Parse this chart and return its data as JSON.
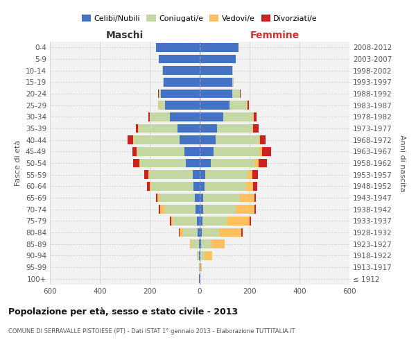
{
  "age_groups": [
    "100+",
    "95-99",
    "90-94",
    "85-89",
    "80-84",
    "75-79",
    "70-74",
    "65-69",
    "60-64",
    "55-59",
    "50-54",
    "45-49",
    "40-44",
    "35-39",
    "30-34",
    "25-29",
    "20-24",
    "15-19",
    "10-14",
    "5-9",
    "0-4"
  ],
  "birth_years": [
    "≤ 1912",
    "1913-1917",
    "1918-1922",
    "1923-1927",
    "1928-1932",
    "1933-1937",
    "1938-1942",
    "1943-1947",
    "1948-1952",
    "1953-1957",
    "1958-1962",
    "1963-1967",
    "1968-1972",
    "1973-1977",
    "1978-1982",
    "1983-1987",
    "1988-1992",
    "1993-1997",
    "1998-2002",
    "2003-2007",
    "2008-2012"
  ],
  "maschi": {
    "celibi": [
      2,
      1,
      2,
      4,
      8,
      12,
      18,
      20,
      25,
      28,
      55,
      60,
      80,
      90,
      120,
      140,
      155,
      145,
      148,
      165,
      175
    ],
    "coniugati": [
      0,
      2,
      8,
      30,
      60,
      95,
      125,
      140,
      170,
      175,
      185,
      190,
      185,
      155,
      80,
      25,
      10,
      3,
      2,
      0,
      0
    ],
    "vedovi": [
      0,
      0,
      2,
      5,
      12,
      8,
      15,
      10,
      5,
      3,
      2,
      2,
      2,
      2,
      1,
      1,
      0,
      0,
      0,
      0,
      0
    ],
    "divorziati": [
      0,
      0,
      0,
      0,
      2,
      5,
      5,
      5,
      10,
      15,
      25,
      18,
      22,
      8,
      5,
      2,
      2,
      0,
      0,
      0,
      0
    ]
  },
  "femmine": {
    "nubili": [
      2,
      2,
      4,
      6,
      8,
      10,
      15,
      15,
      20,
      22,
      45,
      55,
      65,
      70,
      95,
      120,
      130,
      130,
      130,
      145,
      155
    ],
    "coniugate": [
      0,
      2,
      15,
      40,
      70,
      100,
      130,
      145,
      165,
      170,
      175,
      185,
      170,
      140,
      120,
      70,
      30,
      5,
      3,
      0,
      0
    ],
    "vedove": [
      1,
      5,
      30,
      55,
      90,
      90,
      75,
      60,
      30,
      20,
      15,
      10,
      8,
      5,
      3,
      2,
      2,
      0,
      0,
      0,
      0
    ],
    "divorziate": [
      0,
      0,
      0,
      0,
      5,
      5,
      5,
      5,
      15,
      20,
      35,
      35,
      20,
      20,
      10,
      5,
      2,
      0,
      0,
      0,
      0
    ]
  },
  "colors": {
    "celibi": "#4472c4",
    "coniugati": "#c5d8a4",
    "vedovi": "#ffc060",
    "divorziati": "#cc2222"
  },
  "title": "Popolazione per età, sesso e stato civile - 2013",
  "subtitle": "COMUNE DI SERRAVALLE PISTOIESE (PT) - Dati ISTAT 1° gennaio 2013 - Elaborazione TUTTITALIA.IT",
  "xlabel_left": "Maschi",
  "xlabel_right": "Femmine",
  "ylabel_left": "Fasce di età",
  "ylabel_right": "Anni di nascita",
  "xlim": 600,
  "bg_color": "#ffffff",
  "grid_color": "#cccccc"
}
